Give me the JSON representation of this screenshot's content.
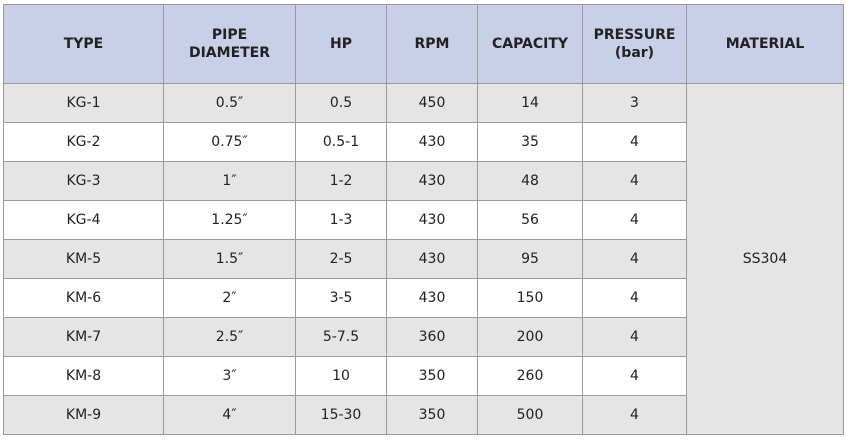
{
  "table": {
    "header": [
      [
        "TYPE"
      ],
      [
        "PIPE",
        "DIAMETER"
      ],
      [
        "HP"
      ],
      [
        "RPM"
      ],
      [
        "CAPACITY"
      ],
      [
        "PRESSURE",
        "(bar)"
      ],
      [
        "MATERIAL"
      ]
    ],
    "rows": [
      [
        "KG-1",
        "0.5″",
        "0.5",
        "450",
        "14",
        "3"
      ],
      [
        "KG-2",
        "0.75″",
        "0.5-1",
        "430",
        "35",
        "4"
      ],
      [
        "KG-3",
        "1″",
        "1-2",
        "430",
        "48",
        "4"
      ],
      [
        "KG-4",
        "1.25″",
        "1-3",
        "430",
        "56",
        "4"
      ],
      [
        "KM-5",
        "1.5″",
        "2-5",
        "430",
        "95",
        "4"
      ],
      [
        "KM-6",
        "2″",
        "3-5",
        "430",
        "150",
        "4"
      ],
      [
        "KM-7",
        "2.5″",
        "5-7.5",
        "360",
        "200",
        "4"
      ],
      [
        "KM-8",
        "3″",
        "10",
        "350",
        "260",
        "4"
      ],
      [
        "KM-9",
        "4″",
        "15-30",
        "350",
        "500",
        "4"
      ]
    ],
    "material": "SS304"
  }
}
